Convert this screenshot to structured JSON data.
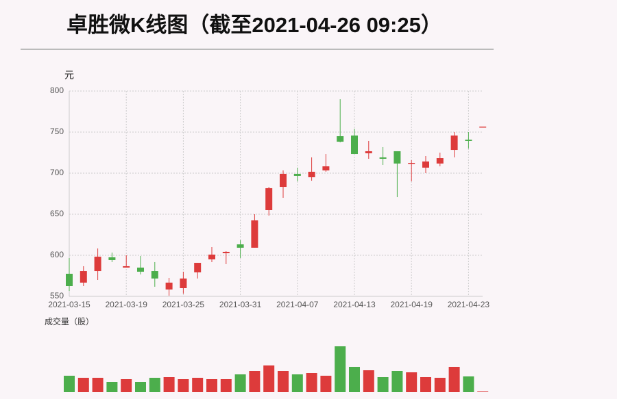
{
  "chart_data": {
    "type": "candlestick",
    "title": "卓胜微K线图（截至2021-04-26 09:25）",
    "y_unit": "元",
    "volume_label": "成交量（股）",
    "categories": [
      "2021-03-15",
      null,
      null,
      null,
      "2021-03-19",
      null,
      null,
      null,
      "2021-03-25",
      null,
      null,
      null,
      "2021-03-31",
      null,
      null,
      null,
      "2021-04-07",
      null,
      null,
      null,
      "2021-04-13",
      null,
      null,
      null,
      "2021-04-19",
      null,
      null,
      null,
      "2021-04-23",
      null
    ],
    "open": [
      577.5,
      566.7,
      580.8,
      597.5,
      585,
      585,
      580.8,
      558.3,
      560,
      579.2,
      595,
      602.5,
      613.3,
      609.2,
      655,
      683.3,
      699.2,
      695,
      703.3,
      745,
      745.8,
      724.2,
      719.2,
      726.7,
      711.7,
      706.7,
      711.7,
      728.3,
      740.8,
      756.7
    ],
    "high": [
      596.7,
      586.7,
      608.3,
      603.3,
      600,
      599.2,
      591.7,
      572.5,
      580,
      590.8,
      610,
      605,
      618.3,
      650,
      683.3,
      703.3,
      706.7,
      719.2,
      723.3,
      790,
      754.2,
      739.2,
      731.7,
      726.7,
      715.8,
      720.8,
      725,
      750,
      750,
      756.7
    ],
    "low": [
      556.7,
      562.5,
      570,
      591.7,
      585,
      576.7,
      561.7,
      550.8,
      553.3,
      571.7,
      591.7,
      589.2,
      596.7,
      609.2,
      648.3,
      670,
      690,
      690.8,
      701.7,
      737.5,
      723.3,
      717.5,
      710,
      670.8,
      690,
      700,
      708.3,
      719.2,
      730,
      756.7
    ],
    "close": [
      562.5,
      580.8,
      598.3,
      594.2,
      586.7,
      580,
      571.7,
      566.7,
      571.7,
      590.8,
      600.8,
      604.2,
      609.2,
      642.5,
      681.7,
      699.2,
      696.7,
      701.7,
      708.3,
      738.3,
      723.3,
      726.7,
      717.5,
      711.7,
      712.5,
      714.2,
      718.3,
      745.8,
      739.2,
      756.7
    ],
    "volume": [
      24,
      21,
      21,
      15,
      19,
      15,
      21,
      22,
      19,
      21,
      19,
      19,
      26,
      31,
      39,
      31,
      26,
      28,
      24,
      67,
      37,
      32,
      22,
      31,
      29,
      22,
      21,
      37,
      23,
      1
    ],
    "ylim": [
      550,
      800
    ],
    "yticks": [
      550,
      600,
      650,
      700,
      750,
      800
    ],
    "grid": true,
    "up_color": "#dd3b3b",
    "down_color": "#4cae4c"
  }
}
